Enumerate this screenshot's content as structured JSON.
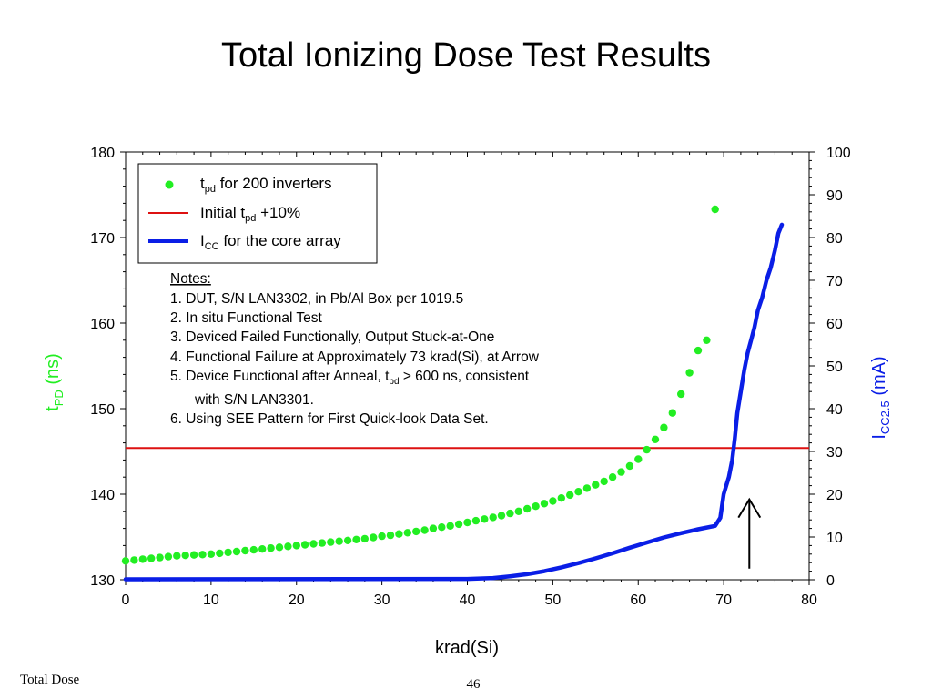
{
  "slide": {
    "title": "Total Ionizing Dose Test Results",
    "footer_left": "Total Dose",
    "page_number": "46"
  },
  "colors": {
    "tpd_series": "#22ee22",
    "limit_line": "#dd1111",
    "icc_series": "#0a1ee6",
    "arrow": "#000000"
  },
  "chart_data": {
    "type": "scatter",
    "xlabel": "krad(Si)",
    "xlim": [
      0,
      80
    ],
    "x_ticks": [
      "0",
      "10",
      "20",
      "30",
      "40",
      "50",
      "60",
      "70",
      "80"
    ],
    "y_left": {
      "label_main": "t",
      "label_sub": "PD",
      "label_rest": " (ns)",
      "lim": [
        130,
        180
      ],
      "ticks": [
        "130",
        "140",
        "150",
        "160",
        "170",
        "180"
      ]
    },
    "y_right": {
      "label_main": "I",
      "label_sub": "CC2.5",
      "label_rest": " (mA)",
      "lim": [
        0,
        100
      ],
      "ticks": [
        "0",
        "10",
        "20",
        "30",
        "40",
        "50",
        "60",
        "70",
        "80",
        "90",
        "100"
      ]
    },
    "legend": [
      {
        "symbol": "dot",
        "text_main": "t",
        "text_sub": "pd",
        "text_rest": " for 200 inverters"
      },
      {
        "symbol": "red-line",
        "text_main": "Initial t",
        "text_sub": "pd",
        "text_rest": " +10%"
      },
      {
        "symbol": "blue-line",
        "text_main": "I",
        "text_sub": "CC",
        "text_rest": " for the core array"
      }
    ],
    "notes": {
      "heading": "Notes:",
      "lines": [
        "1. DUT, S/N LAN3302, in Pb/Al Box per 1019.5",
        "2. In situ Functional Test",
        "3. Deviced Failed Functionally, Output Stuck-at-One",
        "4. Functional Failure at Approximately 73 krad(Si), at Arrow"
      ],
      "line5_main": "5. Device Functional after Anneal, t",
      "line5_sub": "pd",
      "line5_rest": " > 600 ns, consistent",
      "line5_cont": "with S/N LAN3301.",
      "line6": "6. Using SEE Pattern for First Quick-look Data Set."
    },
    "limit_line_value": 145.4,
    "arrow_x": 73,
    "arrow_y_from": 131.3,
    "arrow_y_to": 139.4,
    "series": [
      {
        "name": "tpd for 200 inverters",
        "axis": "left",
        "kind": "scatter",
        "x": [
          0,
          1,
          2,
          3,
          4,
          5,
          6,
          7,
          8,
          9,
          10,
          11,
          12,
          13,
          14,
          15,
          16,
          17,
          18,
          19,
          20,
          21,
          22,
          23,
          24,
          25,
          26,
          27,
          28,
          29,
          30,
          31,
          32,
          33,
          34,
          35,
          36,
          37,
          38,
          39,
          40,
          41,
          42,
          43,
          44,
          45,
          46,
          47,
          48,
          49,
          50,
          51,
          52,
          53,
          54,
          55,
          56,
          57,
          58,
          59,
          60,
          61,
          62,
          63,
          64,
          65,
          66,
          67,
          68,
          69
        ],
        "y": [
          132.2,
          132.3,
          132.4,
          132.5,
          132.6,
          132.7,
          132.8,
          132.85,
          132.9,
          132.95,
          133.0,
          133.1,
          133.2,
          133.3,
          133.4,
          133.5,
          133.6,
          133.7,
          133.8,
          133.9,
          134.0,
          134.1,
          134.2,
          134.3,
          134.4,
          134.5,
          134.6,
          134.7,
          134.8,
          134.95,
          135.1,
          135.2,
          135.35,
          135.5,
          135.65,
          135.8,
          136.0,
          136.15,
          136.3,
          136.5,
          136.7,
          136.9,
          137.1,
          137.3,
          137.5,
          137.75,
          138.0,
          138.3,
          138.6,
          138.9,
          139.2,
          139.55,
          139.9,
          140.3,
          140.7,
          141.1,
          141.5,
          142.0,
          142.6,
          143.3,
          144.1,
          145.2,
          146.4,
          147.8,
          149.5,
          151.7,
          154.2,
          156.8,
          158.0,
          173.3
        ]
      },
      {
        "name": "ICC for the core array",
        "axis": "right",
        "kind": "line",
        "x": [
          0,
          40,
          43,
          45,
          47,
          49,
          51,
          53,
          55,
          57,
          59,
          61,
          63,
          65,
          67,
          69,
          69.6,
          70,
          70.3,
          70.6,
          71,
          71.3,
          71.6,
          72,
          72.4,
          72.8,
          73.2,
          73.6,
          74,
          74.5,
          75,
          75.5,
          76,
          76.4,
          76.8
        ],
        "y": [
          0.1,
          0.2,
          0.4,
          0.8,
          1.3,
          2.0,
          2.9,
          3.9,
          5.0,
          6.2,
          7.5,
          8.7,
          9.9,
          10.9,
          11.8,
          12.6,
          14.5,
          20.0,
          22.0,
          24.0,
          28.0,
          33.0,
          39.0,
          44.0,
          49.0,
          53.0,
          56.0,
          59.0,
          63.0,
          66.0,
          70.0,
          73.0,
          77.0,
          81.0,
          83.0
        ]
      }
    ]
  }
}
